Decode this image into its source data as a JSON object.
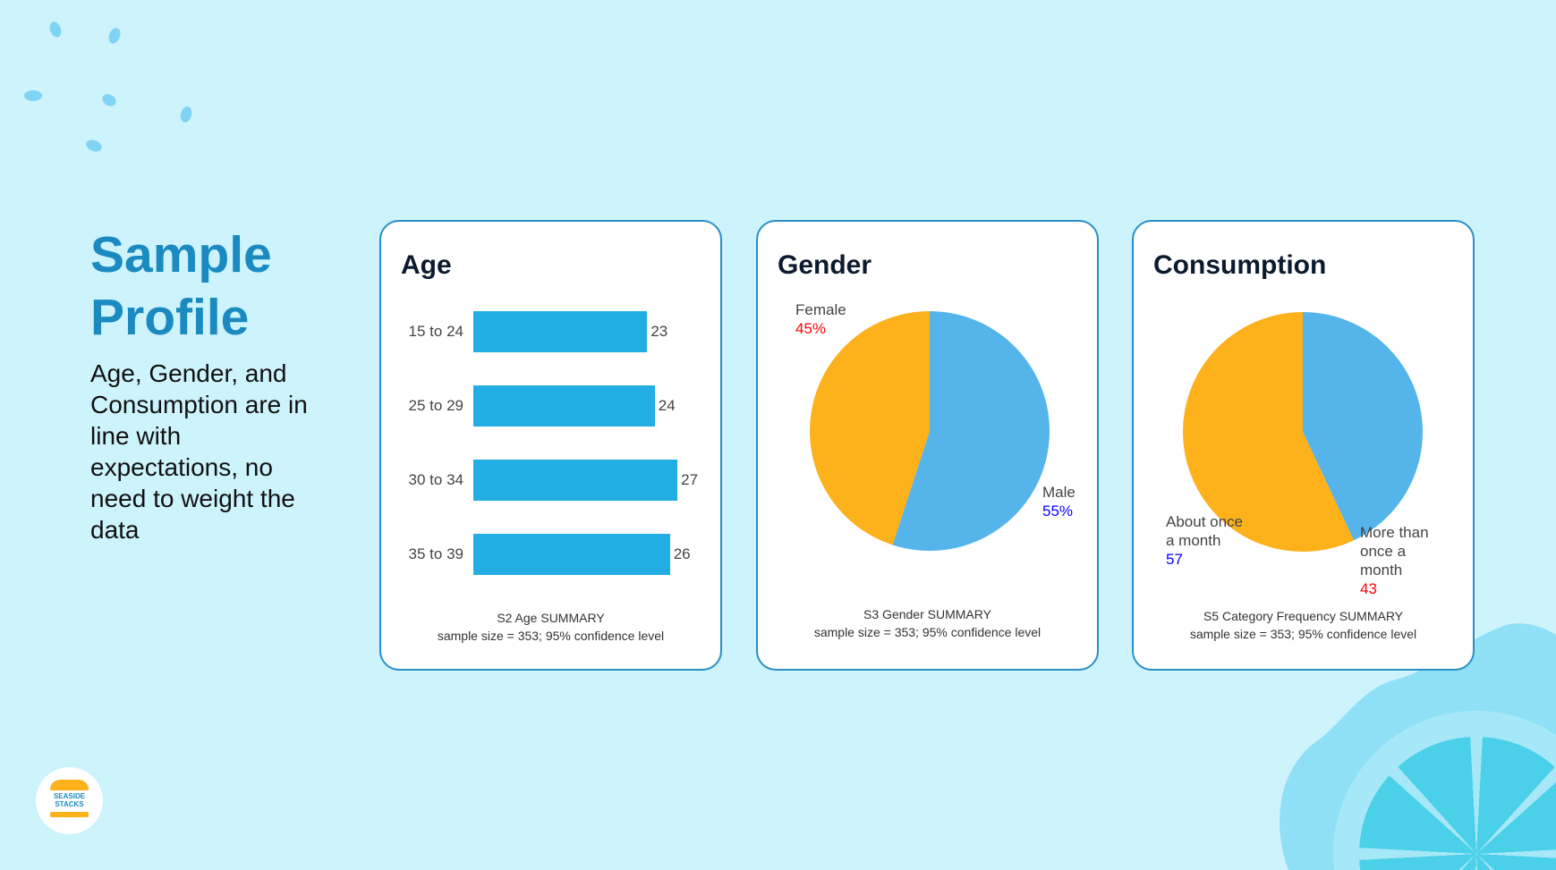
{
  "slide": {
    "title_line1": "Sample",
    "title_line2": "Profile",
    "body": "Age, Gender, and Consumption are in line with expectations, no need to weight the data",
    "logo_text": "SEASIDE STACKS"
  },
  "colors": {
    "background": "#cdf3fd",
    "title": "#1a8ac0",
    "bar": "#22aee2",
    "pie_blue": "#55b4ea",
    "pie_orange": "#fdb11b",
    "red": "#ff0000",
    "blue": "#0000ff"
  },
  "chart_data": [
    {
      "type": "bar",
      "title": "Age",
      "categories": [
        "15 to 24",
        "25 to 29",
        "30 to 34",
        "35 to 39"
      ],
      "values": [
        23,
        24,
        27,
        26
      ],
      "caption_line1": "S2 Age SUMMARY",
      "caption_line2": "sample size = 353; 95% confidence level"
    },
    {
      "type": "pie",
      "title": "Gender",
      "slices": [
        {
          "label": "Male",
          "value": 55,
          "value_label": "55%"
        },
        {
          "label": "Female",
          "value": 45,
          "value_label": "45%"
        }
      ],
      "caption_line1": "S3 Gender SUMMARY",
      "caption_line2": "sample size = 353; 95% confidence level"
    },
    {
      "type": "pie",
      "title": "Consumption",
      "slices": [
        {
          "label": "More than once a month",
          "value": 43,
          "value_label": "43"
        },
        {
          "label": "About once a month",
          "value": 57,
          "value_label": "57"
        }
      ],
      "caption_line1": "S5 Category Frequency SUMMARY",
      "caption_line2": "sample size = 353; 95% confidence level"
    }
  ]
}
